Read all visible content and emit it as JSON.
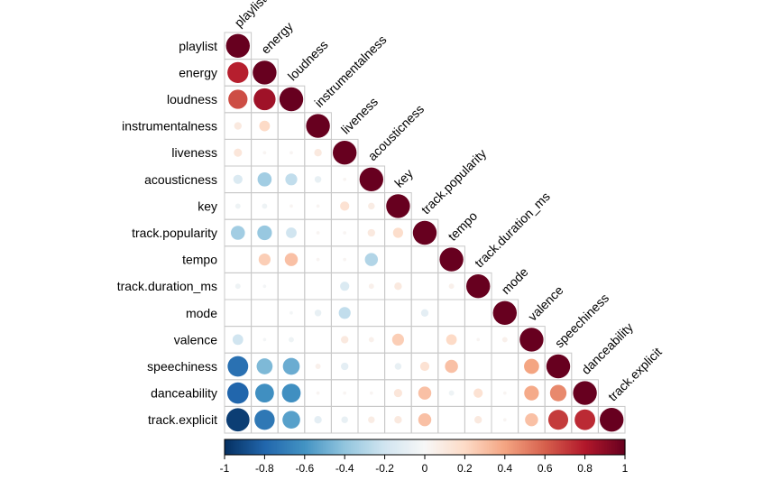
{
  "chart_data": {
    "type": "heatmap",
    "layout": "lower-triangle correlation plot with circles",
    "variables": [
      "playlist",
      "energy",
      "loudness",
      "instrumentalness",
      "liveness",
      "acousticness",
      "key",
      "track.popularity",
      "tempo",
      "track.duration_ms",
      "mode",
      "valence",
      "speechiness",
      "danceability",
      "track.explicit"
    ],
    "matrix": [
      [
        1
      ],
      [
        0.78,
        1
      ],
      [
        0.65,
        0.85,
        1
      ],
      [
        0.1,
        0.2,
        0,
        1
      ],
      [
        0.12,
        0.02,
        0.02,
        0.1,
        1
      ],
      [
        -0.15,
        -0.35,
        -0.25,
        -0.08,
        0.02,
        1
      ],
      [
        -0.05,
        -0.05,
        0.02,
        0.02,
        0.15,
        0.08,
        1
      ],
      [
        -0.35,
        -0.38,
        -0.2,
        0.02,
        0.02,
        0.1,
        0.18,
        1
      ],
      [
        0,
        0.25,
        0.3,
        0.02,
        0.02,
        -0.3,
        0,
        0,
        1
      ],
      [
        -0.05,
        -0.02,
        0,
        0,
        -0.15,
        0.05,
        0.1,
        0,
        0.05,
        1
      ],
      [
        0,
        0,
        -0.02,
        -0.08,
        -0.25,
        0,
        0,
        -0.1,
        0,
        0,
        1
      ],
      [
        -0.2,
        -0.02,
        -0.05,
        0,
        0.1,
        0.05,
        0.25,
        0,
        0.2,
        0.02,
        0.05,
        1
      ],
      [
        -0.75,
        -0.45,
        -0.5,
        0.05,
        -0.1,
        0,
        -0.08,
        0.15,
        0.3,
        0,
        0,
        0.4,
        1
      ],
      [
        -0.8,
        -0.62,
        -0.62,
        0.02,
        0.02,
        0.02,
        0.12,
        0.3,
        -0.05,
        0.15,
        0.02,
        0.38,
        0.48,
        1
      ],
      [
        -0.95,
        -0.72,
        -0.55,
        -0.1,
        -0.08,
        0.08,
        0.1,
        0.3,
        0,
        0.1,
        0.02,
        0.3,
        0.7,
        0.75,
        1
      ]
    ],
    "colorbar": {
      "range": [
        -1,
        1
      ],
      "ticks": [
        "-1",
        "-0.8",
        "-0.6",
        "-0.4",
        "-0.2",
        "0",
        "0.2",
        "0.4",
        "0.6",
        "0.8",
        "1"
      ]
    },
    "colors": {
      "negative_strong": "#053061",
      "negative_mid": "#4393c3",
      "negative_light": "#d1e5f0",
      "neutral": "#f7f7f7",
      "positive_light": "#fddbc7",
      "positive_mid": "#d6604d",
      "positive_strong": "#67001f",
      "grid": "#c8c8c8"
    }
  }
}
